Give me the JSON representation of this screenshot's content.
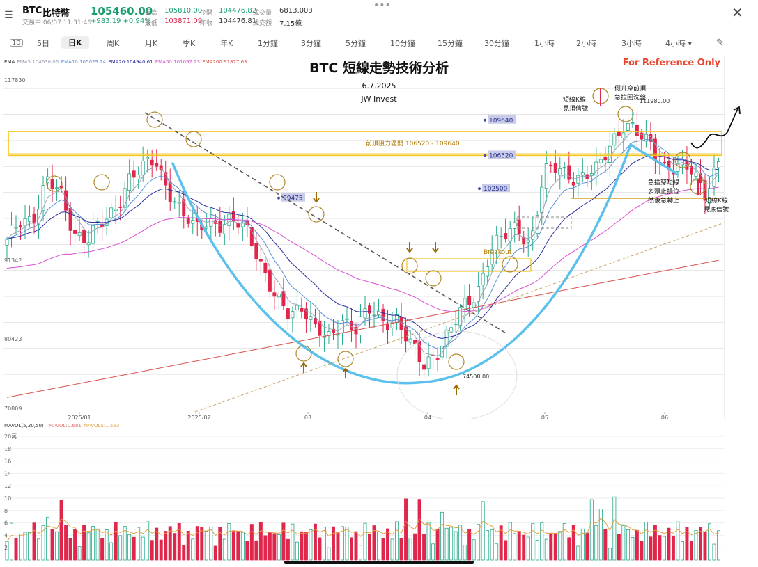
{
  "header": {
    "symbol": "BTC",
    "name": "比特幣",
    "price": "105460.00",
    "status": "交易中 06/07 11:31:46",
    "change": "+983.19 +0.94%",
    "high_label": "最高",
    "high": "105810.00",
    "low_label": "最低",
    "low": "103871.09",
    "open_label": "今開",
    "open": "104476.82",
    "prev_label": "昨收",
    "prev": "104476.81",
    "vol_label": "成交量",
    "vol": "6813.003",
    "amt_label": "成交額",
    "amt": "7.15億"
  },
  "timeframes": [
    "5日",
    "日K",
    "周K",
    "月K",
    "季K",
    "年K",
    "1分鐘",
    "3分鐘",
    "5分鐘",
    "10分鐘",
    "15分鐘",
    "30分鐘",
    "1小時",
    "2小時",
    "3小時",
    "4小時 ▾"
  ],
  "timeframe_active": "日K",
  "tf_box": "1D",
  "ema_legend": {
    "label": "EMA",
    "ema5": "EMA5:104636.06",
    "ema10": "EMA10:105029.24",
    "ema20": "EMA20:104940.61",
    "ema50": "EMA50:101097.23",
    "ema200": "EMA200:91877.63"
  },
  "colors": {
    "up": "#e0264b",
    "down": "#25a98a",
    "ema5": "#9aa0b8",
    "ema10": "#5b8fd6",
    "ema20": "#2a2fa0",
    "ema50": "#d94fd1",
    "ema200": "#d9534f",
    "cup": "#5bc0eb",
    "resistance": "#f5c518",
    "reference": "#e8442e"
  },
  "title": "BTC 短線走勢技術分析",
  "date": "6.7.2025",
  "author": "JW Invest",
  "reference": "For Reference Only",
  "annotations": {
    "resistance_zone": "前頂阻力區間 106520 - 109640",
    "p109640": "109640",
    "p106520": "106520",
    "p102500": "102500",
    "p99475": "99475",
    "p74508": "74508.00",
    "p111980": "111980.00",
    "breakout": "Breakout",
    "top_signal_1": "短線K線",
    "top_signal_2": "見頂信號",
    "fake_break_1": "假升穿前頂",
    "fake_break_2": "急拉回洗盤",
    "dip_1": "急插穿短線",
    "dip_2": "多頭止損位",
    "dip_3": "然後急轉上",
    "bottom_1": "短線K線",
    "bottom_2": "見底信號"
  },
  "vol_legend": {
    "label": "MAVOL(5,20,50)",
    "mavol": "MAVOL:0.681",
    "mavol5": "MAVOL5:1.553"
  },
  "chart_data": {
    "type": "candlestick",
    "y_ticks": [
      "117830",
      "91342",
      "80423",
      "70809"
    ],
    "x_ticks": [
      "2025/01",
      "2025/02",
      "03",
      "04",
      "05",
      "06"
    ],
    "ylim": [
      70809,
      117830
    ],
    "series": [
      {
        "name": "BTC",
        "close_values": [
          94000,
          97500,
          98000,
          102500,
          101000,
          96000,
          94500,
          96500,
          99000,
          103000,
          104000,
          106000,
          102000,
          98000,
          96000,
          97800,
          96500,
          96800,
          96200,
          91000,
          86000,
          84300,
          86000,
          82000,
          80500,
          84000,
          82500,
          84500,
          83500,
          84000,
          80000,
          77000,
          79500,
          82000,
          85000,
          87500,
          93500,
          94700,
          96500,
          94300,
          103500,
          104500,
          103800,
          103300,
          104000,
          108500,
          111000,
          108800,
          107700,
          105000,
          104500,
          104000,
          101500,
          105460
        ]
      }
    ],
    "volume": {
      "label": "MAVOL(5,20,50)",
      "unit": "萬",
      "ticks": [
        "20萬",
        "18",
        "16",
        "14",
        "12",
        "10",
        "8",
        "6",
        "4",
        "2"
      ]
    }
  }
}
